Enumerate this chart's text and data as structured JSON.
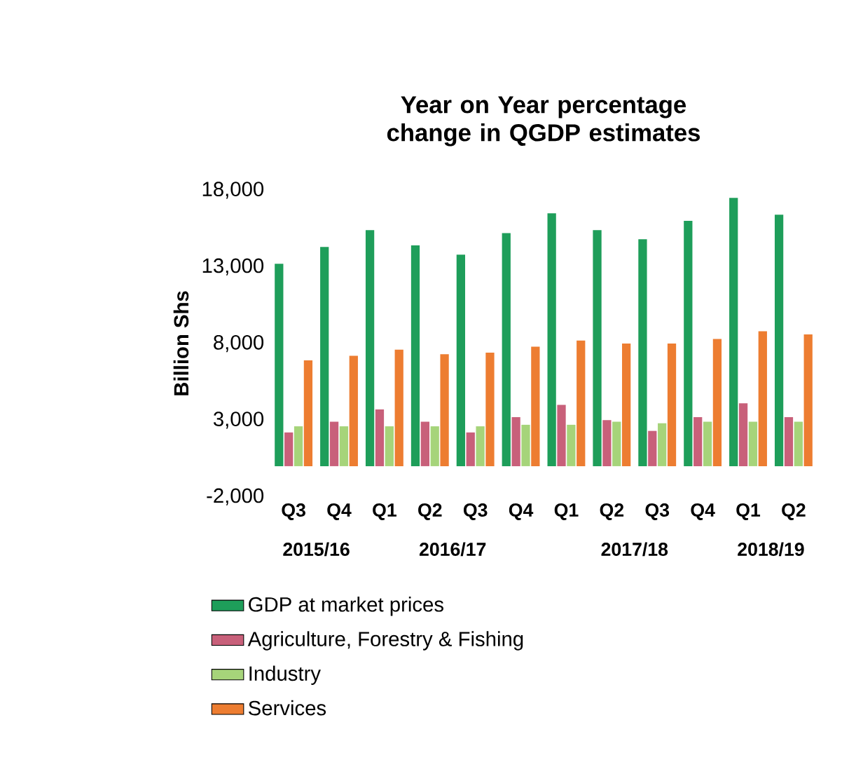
{
  "chart_data": {
    "type": "bar",
    "title": "Year on Year percentage change in QGDP estimates",
    "ylabel": "Billion Shs",
    "categories": [
      "Q3",
      "Q4",
      "Q1",
      "Q2",
      "Q3",
      "Q4",
      "Q1",
      "Q2",
      "Q3",
      "Q4",
      "Q1",
      "Q2"
    ],
    "annotations": [
      "2015/16",
      "2016/17",
      "2017/18",
      "2018/19"
    ],
    "series": [
      {
        "name": "GDP at market prices",
        "color": "#1e9e5a",
        "values": [
          13200,
          14300,
          15400,
          14400,
          13800,
          15200,
          16500,
          15400,
          14800,
          16000,
          17500,
          16400
        ]
      },
      {
        "name": "Agriculture, Forestry & Fishing",
        "color": "#c8607a",
        "values": [
          2200,
          2900,
          3700,
          2900,
          2200,
          3200,
          4000,
          3000,
          2300,
          3200,
          4100,
          3200
        ]
      },
      {
        "name": "Industry",
        "color": "#a6d47a",
        "values": [
          2600,
          2600,
          2600,
          2600,
          2600,
          2700,
          2700,
          2900,
          2800,
          2900,
          2900,
          2900
        ]
      },
      {
        "name": "Services",
        "color": "#ed7d31",
        "values": [
          6900,
          7200,
          7600,
          7300,
          7400,
          7800,
          8200,
          8000,
          8000,
          8300,
          8800,
          8600
        ]
      }
    ],
    "ylim": [
      -2000,
      18000
    ],
    "yticks": [
      {
        "value": -2000,
        "label": "-2,000"
      },
      {
        "value": 3000,
        "label": "3,000"
      },
      {
        "value": 8000,
        "label": "8,000"
      },
      {
        "value": 13000,
        "label": "13,000"
      },
      {
        "value": 18000,
        "label": "18,000"
      }
    ],
    "grid": false,
    "legend": "bottom"
  }
}
